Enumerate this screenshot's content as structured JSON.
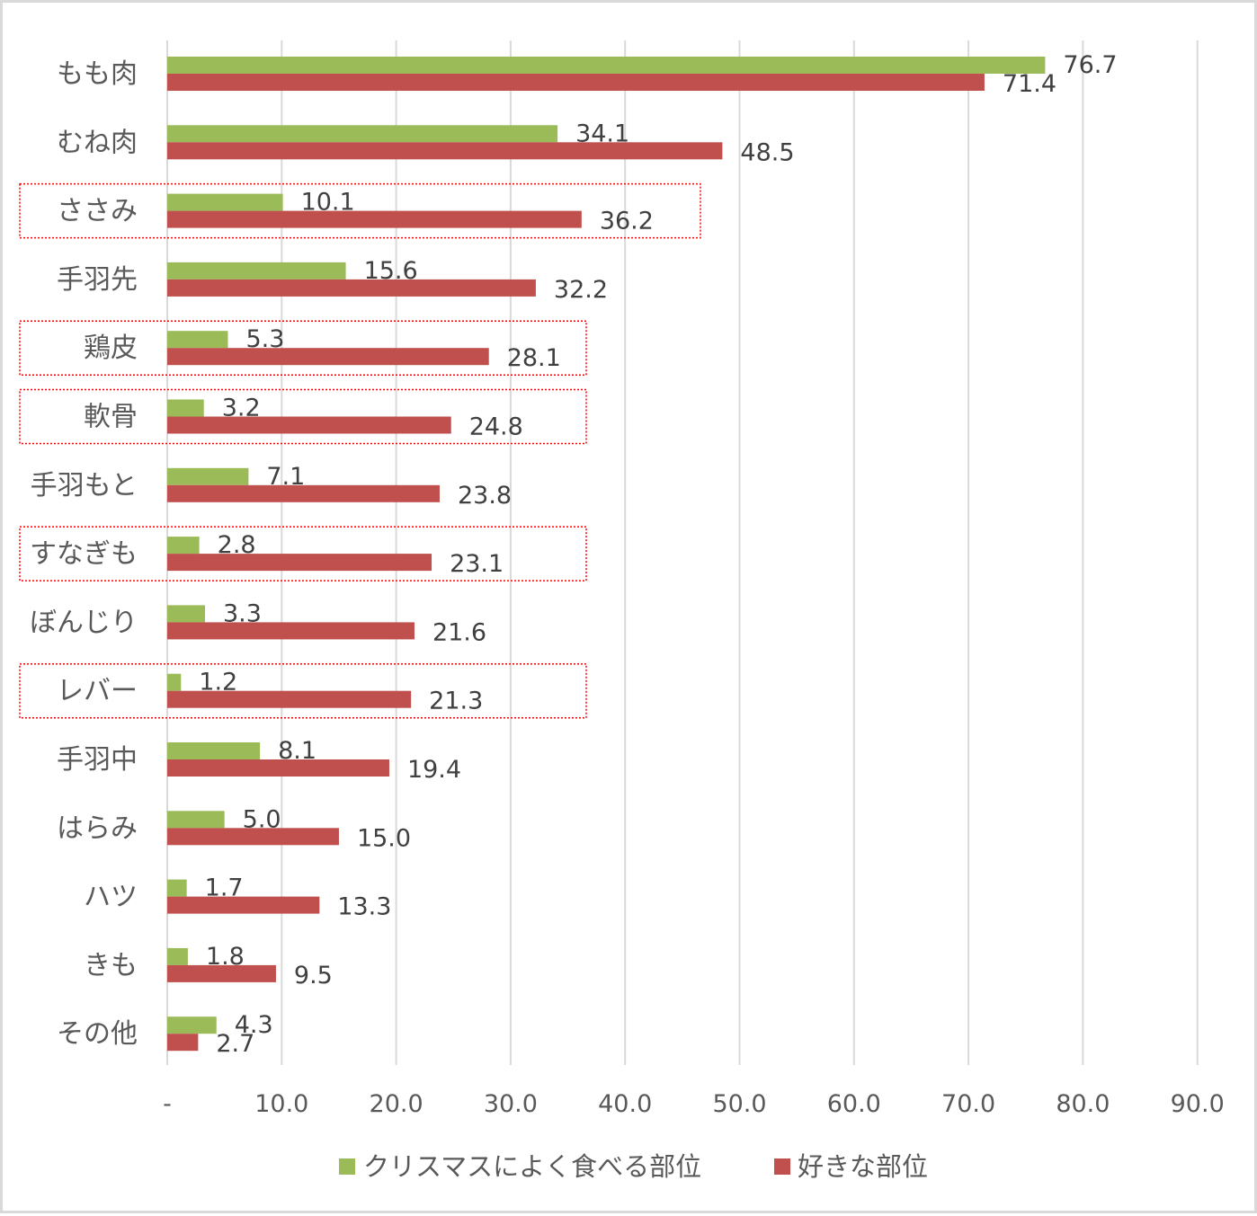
{
  "chart_data": {
    "type": "bar",
    "orientation": "horizontal",
    "title": "",
    "xlabel": "",
    "ylabel": "",
    "xlim": [
      0,
      90
    ],
    "x_ticks": [
      "-",
      "10.0",
      "20.0",
      "30.0",
      "40.0",
      "50.0",
      "60.0",
      "70.0",
      "80.0",
      "90.0"
    ],
    "grid": true,
    "legend_position": "bottom",
    "categories": [
      "もも肉",
      "むね肉",
      "ささみ",
      "手羽先",
      "鶏皮",
      "軟骨",
      "手羽もと",
      "すなぎも",
      "ぼんじり",
      "レバー",
      "手羽中",
      "はらみ",
      "ハツ",
      "きも",
      "その他"
    ],
    "series": [
      {
        "name": "クリスマスによく食べる部位",
        "color": "#9bbb59",
        "values": [
          76.7,
          34.1,
          10.1,
          15.6,
          5.3,
          3.2,
          7.1,
          2.8,
          3.3,
          1.2,
          8.1,
          5.0,
          1.7,
          1.8,
          4.3
        ],
        "labels": [
          "76.7",
          "34.1",
          "10.1",
          "15.6",
          "5.3",
          "3.2",
          "7.1",
          "2.8",
          "3.3",
          "1.2",
          "8.1",
          "5.0",
          "1.7",
          "1.8",
          "4.3"
        ]
      },
      {
        "name": "好きな部位",
        "color": "#c0504d",
        "values": [
          71.4,
          48.5,
          36.2,
          32.2,
          28.1,
          24.8,
          23.8,
          23.1,
          21.6,
          21.3,
          19.4,
          15.0,
          13.3,
          9.5,
          2.7
        ],
        "labels": [
          "71.4",
          "48.5",
          "36.2",
          "32.2",
          "28.1",
          "24.8",
          "23.8",
          "23.1",
          "21.6",
          "21.3",
          "19.4",
          "15.0",
          "13.3",
          "9.5",
          "2.7"
        ]
      }
    ],
    "highlighted_categories": [
      "ささみ",
      "鶏皮",
      "軟骨",
      "すなぎも",
      "レバー"
    ],
    "highlight_color": "#ff0000",
    "gridline_color": "#d9d9d9"
  }
}
